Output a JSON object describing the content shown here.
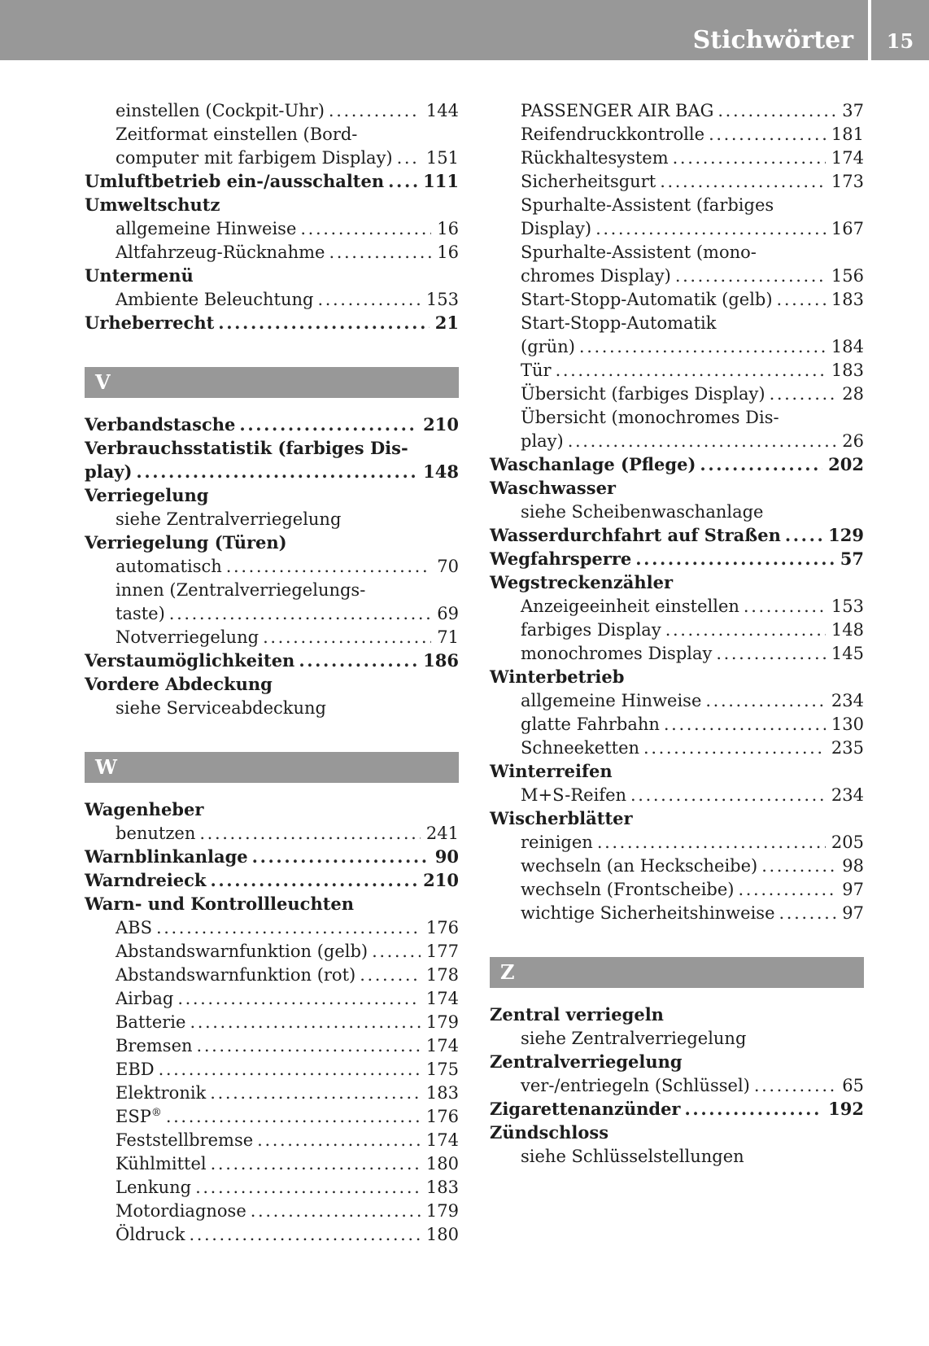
{
  "header": {
    "title": "Stichwörter",
    "page_number": "15"
  },
  "colors": {
    "bar_gray": "#989898",
    "text": "#1d1d1d",
    "header_text": "#ffffff"
  },
  "columns": [
    {
      "lines": [
        {
          "t": "einstellen (Cockpit-Uhr)",
          "i": 1,
          "p": "144"
        },
        {
          "t": "Zeitformat einstellen (Bord-",
          "i": 1
        },
        {
          "t": "computer mit farbigem Display)",
          "i": 1,
          "p": "151"
        },
        {
          "t": "Umluftbetrieb ein-/ausschalten",
          "b": true,
          "p": "111"
        },
        {
          "t": "Umweltschutz",
          "b": true
        },
        {
          "t": "allgemeine Hinweise",
          "i": 1,
          "p": "16"
        },
        {
          "t": "Altfahrzeug-Rücknahme",
          "i": 1,
          "p": "16"
        },
        {
          "t": "Untermenü",
          "b": true
        },
        {
          "t": "Ambiente Beleuchtung",
          "i": 1,
          "p": "153"
        },
        {
          "t": "Urheberrecht",
          "b": true,
          "p": "21"
        },
        {
          "bar": "V"
        },
        {
          "t": "Verbandstasche",
          "b": true,
          "p": "210"
        },
        {
          "t": "Verbrauchsstatistik (farbiges Dis-",
          "b": true
        },
        {
          "t": "play)",
          "b": true,
          "p": "148"
        },
        {
          "t": "Verriegelung",
          "b": true
        },
        {
          "t": "siehe Zentralverriegelung",
          "i": 1
        },
        {
          "t": "Verriegelung (Türen)",
          "b": true
        },
        {
          "t": "automatisch",
          "i": 1,
          "p": "70"
        },
        {
          "t": "innen (Zentralverriegelungs-",
          "i": 1
        },
        {
          "t": "taste)",
          "i": 1,
          "p": "69"
        },
        {
          "t": "Notverriegelung",
          "i": 1,
          "p": "71"
        },
        {
          "t": "Verstaumöglichkeiten",
          "b": true,
          "p": "186"
        },
        {
          "t": "Vordere Abdeckung",
          "b": true
        },
        {
          "t": "siehe Serviceabdeckung",
          "i": 1
        },
        {
          "bar": "W"
        },
        {
          "t": "Wagenheber",
          "b": true
        },
        {
          "t": "benutzen",
          "i": 1,
          "p": "241"
        },
        {
          "t": "Warnblinkanlage",
          "b": true,
          "p": "90"
        },
        {
          "t": "Warndreieck",
          "b": true,
          "p": "210"
        },
        {
          "t": "Warn- und Kontrollleuchten",
          "b": true
        },
        {
          "t": "ABS",
          "i": 1,
          "p": "176"
        },
        {
          "t": "Abstandswarnfunktion (gelb)",
          "i": 1,
          "p": "177"
        },
        {
          "t": "Abstandswarnfunktion (rot)",
          "i": 1,
          "p": "178"
        },
        {
          "t": "Airbag",
          "i": 1,
          "p": "174"
        },
        {
          "t": "Batterie",
          "i": 1,
          "p": "179"
        },
        {
          "t": "Bremsen",
          "i": 1,
          "p": "174"
        },
        {
          "t": "EBD",
          "i": 1,
          "p": "175"
        },
        {
          "t": "Elektronik",
          "i": 1,
          "p": "183"
        },
        {
          "t": "ESP",
          "sup": "®",
          "i": 1,
          "p": "176"
        },
        {
          "t": "Feststellbremse",
          "i": 1,
          "p": "174"
        },
        {
          "t": "Kühlmittel",
          "i": 1,
          "p": "180"
        },
        {
          "t": "Lenkung",
          "i": 1,
          "p": "183"
        },
        {
          "t": "Motordiagnose",
          "i": 1,
          "p": "179"
        },
        {
          "t": "Öldruck",
          "i": 1,
          "p": "180"
        }
      ]
    },
    {
      "lines": [
        {
          "t": "PASSENGER AIR BAG",
          "i": 1,
          "p": "37"
        },
        {
          "t": "Reifendruckkontrolle",
          "i": 1,
          "p": "181"
        },
        {
          "t": "Rückhaltesystem",
          "i": 1,
          "p": "174"
        },
        {
          "t": "Sicherheitsgurt",
          "i": 1,
          "p": "173"
        },
        {
          "t": "Spurhalte-Assistent (farbiges",
          "i": 1
        },
        {
          "t": "Display)",
          "i": 1,
          "p": "167"
        },
        {
          "t": "Spurhalte-Assistent (mono-",
          "i": 1
        },
        {
          "t": "chromes Display)",
          "i": 1,
          "p": "156"
        },
        {
          "t": "Start-Stopp-Automatik (gelb)",
          "i": 1,
          "p": "183"
        },
        {
          "t": "Start-Stopp-Automatik",
          "i": 1
        },
        {
          "t": "(grün)",
          "i": 1,
          "p": "184"
        },
        {
          "t": "Tür",
          "i": 1,
          "p": "183"
        },
        {
          "t": "Übersicht (farbiges Display)",
          "i": 1,
          "p": "28"
        },
        {
          "t": "Übersicht (monochromes Dis-",
          "i": 1
        },
        {
          "t": "play)",
          "i": 1,
          "p": "26"
        },
        {
          "t": "Waschanlage (Pflege)",
          "b": true,
          "p": "202"
        },
        {
          "t": "Waschwasser",
          "b": true
        },
        {
          "t": "siehe Scheibenwaschanlage",
          "i": 1
        },
        {
          "t": "Wasserdurchfahrt auf Straßen",
          "b": true,
          "p": "129"
        },
        {
          "t": "Wegfahrsperre",
          "b": true,
          "p": "57"
        },
        {
          "t": "Wegstreckenzähler",
          "b": true
        },
        {
          "t": "Anzeigeeinheit einstellen",
          "i": 1,
          "p": "153"
        },
        {
          "t": "farbiges Display",
          "i": 1,
          "p": "148"
        },
        {
          "t": "monochromes Display",
          "i": 1,
          "p": "145"
        },
        {
          "t": "Winterbetrieb",
          "b": true
        },
        {
          "t": "allgemeine Hinweise",
          "i": 1,
          "p": "234"
        },
        {
          "t": "glatte Fahrbahn",
          "i": 1,
          "p": "130"
        },
        {
          "t": "Schneeketten",
          "i": 1,
          "p": "235"
        },
        {
          "t": "Winterreifen",
          "b": true
        },
        {
          "t": "M+S-Reifen",
          "i": 1,
          "p": "234"
        },
        {
          "t": "Wischerblätter",
          "b": true
        },
        {
          "t": "reinigen",
          "i": 1,
          "p": "205"
        },
        {
          "t": "wechseln (an Heckscheibe)",
          "i": 1,
          "p": "98"
        },
        {
          "t": "wechseln (Frontscheibe)",
          "i": 1,
          "p": "97"
        },
        {
          "t": "wichtige Sicherheitshinweise",
          "i": 1,
          "p": "97"
        },
        {
          "bar": "Z"
        },
        {
          "t": "Zentral verriegeln",
          "b": true
        },
        {
          "t": "siehe Zentralverriegelung",
          "i": 1
        },
        {
          "t": "Zentralverriegelung",
          "b": true
        },
        {
          "t": "ver-/entriegeln (Schlüssel)",
          "i": 1,
          "p": "65"
        },
        {
          "t": "Zigarettenanzünder",
          "b": true,
          "p": "192"
        },
        {
          "t": "Zündschloss",
          "b": true
        },
        {
          "t": "siehe Schlüsselstellungen",
          "i": 1
        }
      ]
    }
  ]
}
